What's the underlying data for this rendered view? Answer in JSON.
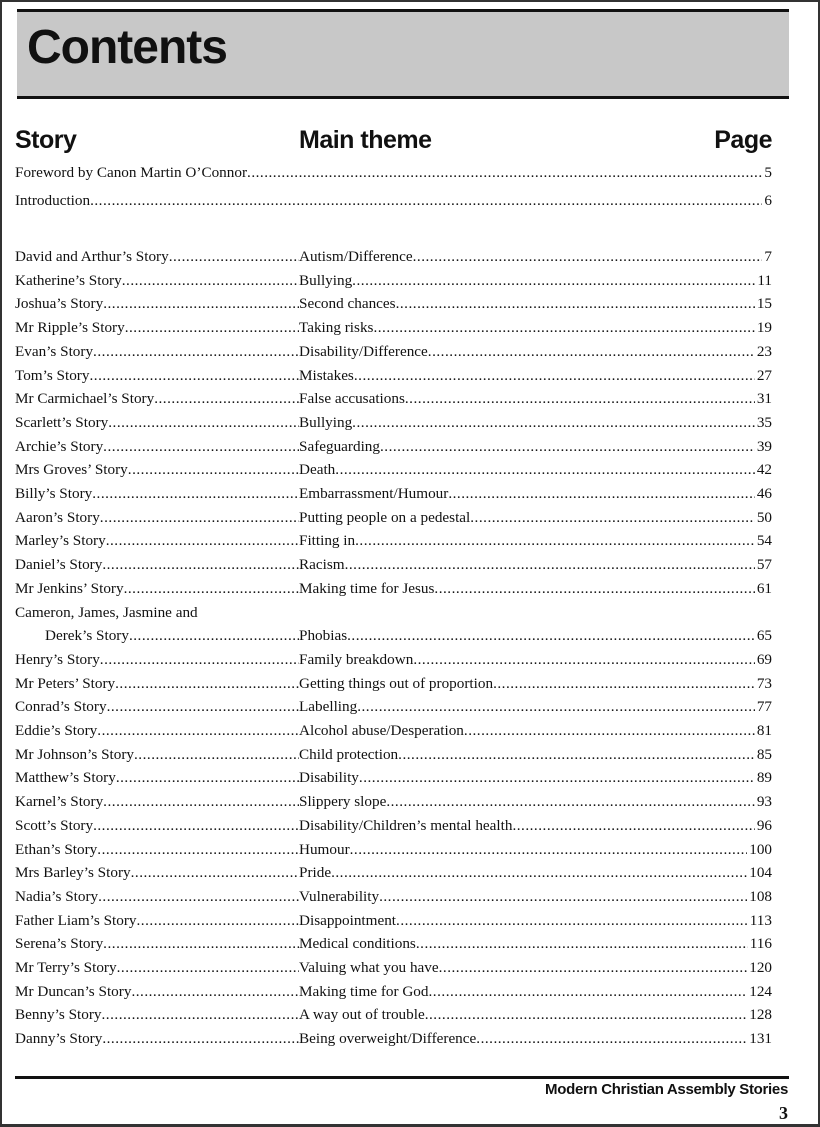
{
  "title": "Contents",
  "headers": {
    "story": "Story",
    "theme": "Main theme",
    "page": "Page"
  },
  "front_matter": [
    {
      "label": "Foreword by Canon Martin O’Connor",
      "page": "5"
    },
    {
      "label": "Introduction",
      "page": "6"
    }
  ],
  "entries": [
    {
      "story": "David and Arthur’s Story",
      "theme": "Autism/Difference",
      "page": "7"
    },
    {
      "story": "Katherine’s Story",
      "theme": "Bullying",
      "page": "11"
    },
    {
      "story": "Joshua’s Story",
      "theme": "Second chances",
      "page": "15"
    },
    {
      "story": "Mr Ripple’s Story",
      "theme": "Taking risks",
      "page": "19"
    },
    {
      "story": "Evan’s Story",
      "theme": "Disability/Difference",
      "page": "23"
    },
    {
      "story": "Tom’s Story",
      "theme": "Mistakes",
      "page": "27"
    },
    {
      "story": "Mr Carmichael’s Story",
      "theme": "False accusations",
      "page": "31"
    },
    {
      "story": "Scarlett’s Story",
      "theme": "Bullying",
      "page": "35"
    },
    {
      "story": "Archie’s Story",
      "theme": "Safeguarding",
      "page": "39"
    },
    {
      "story": "Mrs Groves’ Story",
      "theme": "Death",
      "page": "42"
    },
    {
      "story": "Billy’s Story",
      "theme": "Embarrassment/Humour",
      "page": "46"
    },
    {
      "story": "Aaron’s Story",
      "theme": "Putting people on a pedestal",
      "page": "50"
    },
    {
      "story": "Marley’s Story",
      "theme": "Fitting in",
      "page": "54"
    },
    {
      "story": "Daniel’s Story",
      "theme": "Racism",
      "page": "57"
    },
    {
      "story": "Mr Jenkins’ Story",
      "theme": "Making time for Jesus",
      "page": "61"
    },
    {
      "story_line1": "Cameron, James, Jasmine and",
      "story": "Derek’s Story",
      "theme": "Phobias",
      "page": "65"
    },
    {
      "story": "Henry’s Story",
      "theme": "Family breakdown",
      "page": "69"
    },
    {
      "story": "Mr Peters’ Story",
      "theme": "Getting things out of proportion",
      "page": "73"
    },
    {
      "story": "Conrad’s Story",
      "theme": "Labelling",
      "page": "77"
    },
    {
      "story": "Eddie’s Story",
      "theme": "Alcohol abuse/Desperation",
      "page": "81"
    },
    {
      "story": "Mr Johnson’s Story",
      "theme": "Child protection",
      "page": "85"
    },
    {
      "story": "Matthew’s Story",
      "theme": "Disability",
      "page": "89"
    },
    {
      "story": "Karnel’s Story",
      "theme": "Slippery slope",
      "page": "93"
    },
    {
      "story": "Scott’s Story",
      "theme": "Disability/Children’s mental health",
      "page": "96"
    },
    {
      "story": "Ethan’s Story",
      "theme": "Humour",
      "page": "100"
    },
    {
      "story": "Mrs Barley’s Story",
      "theme": "Pride",
      "page": "104"
    },
    {
      "story": "Nadia’s Story",
      "theme": "Vulnerability",
      "page": "108"
    },
    {
      "story": "Father Liam’s Story",
      "theme": "Disappointment",
      "page": "113"
    },
    {
      "story": "Serena’s Story",
      "theme": "Medical conditions",
      "page": "116"
    },
    {
      "story": "Mr Terry’s Story",
      "theme": "Valuing what you have",
      "page": "120"
    },
    {
      "story": "Mr Duncan’s Story",
      "theme": "Making time for God",
      "page": "124"
    },
    {
      "story": "Benny’s Story",
      "theme": "A way out of trouble",
      "page": "128"
    },
    {
      "story": "Danny’s Story",
      "theme": "Being overweight/Difference",
      "page": "131"
    }
  ],
  "footer": {
    "book_title": "Modern Christian Assembly Stories",
    "page_number": "3"
  }
}
